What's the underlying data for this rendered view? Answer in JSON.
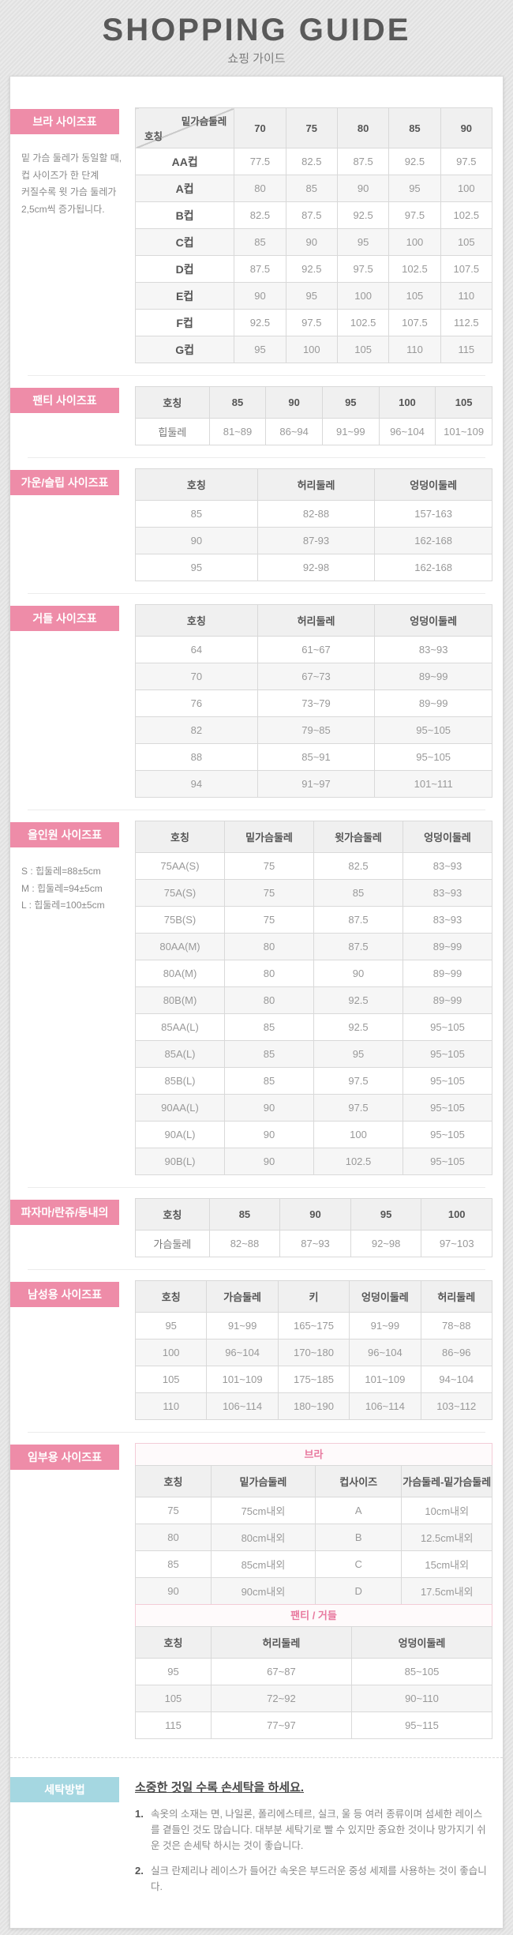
{
  "page": {
    "title": "SHOPPING GUIDE",
    "subtitle": "쇼핑 가이드"
  },
  "colors": {
    "label_pink": "#ee8ca8",
    "label_blue": "#a5d7e1",
    "band_pink_text": "#e8799f"
  },
  "sections": {
    "bra": {
      "label": "브라 사이즈표",
      "note_lines": [
        "밑 가슴 둘레가 동일할 때,",
        "컵 사이즈가 한 단계",
        "커질수록 윗 가슴 둘레가",
        "2,5cm씩 증가됩니다."
      ],
      "table": {
        "corner": {
          "top": "밑가슴둘레",
          "bottom": "호칭"
        },
        "header": [
          "70",
          "75",
          "80",
          "85",
          "90"
        ],
        "rows": [
          [
            "AA컵",
            "77.5",
            "82.5",
            "87.5",
            "92.5",
            "97.5"
          ],
          [
            "A컵",
            "80",
            "85",
            "90",
            "95",
            "100"
          ],
          [
            "B컵",
            "82.5",
            "87.5",
            "92.5",
            "97.5",
            "102.5"
          ],
          [
            "C컵",
            "85",
            "90",
            "95",
            "100",
            "105"
          ],
          [
            "D컵",
            "87.5",
            "92.5",
            "97.5",
            "102.5",
            "107.5"
          ],
          [
            "E컵",
            "90",
            "95",
            "100",
            "105",
            "110"
          ],
          [
            "F컵",
            "92.5",
            "97.5",
            "102.5",
            "107.5",
            "112.5"
          ],
          [
            "G컵",
            "95",
            "100",
            "105",
            "110",
            "115"
          ]
        ]
      }
    },
    "panty": {
      "label": "팬티 사이즈표",
      "table": {
        "header": [
          "호칭",
          "85",
          "90",
          "95",
          "100",
          "105"
        ],
        "rows": [
          [
            "힙둘레",
            "81~89",
            "86~94",
            "91~99",
            "96~104",
            "101~109"
          ]
        ]
      }
    },
    "gown": {
      "label": "가운/슬립 사이즈표",
      "table": {
        "header": [
          "호칭",
          "허리둘레",
          "엉덩이둘레"
        ],
        "rows": [
          [
            "85",
            "82-88",
            "157-163"
          ],
          [
            "90",
            "87-93",
            "162-168"
          ],
          [
            "95",
            "92-98",
            "162-168"
          ]
        ]
      }
    },
    "girdle": {
      "label": "거들 사이즈표",
      "table": {
        "header": [
          "호칭",
          "허리둘레",
          "엉덩이둘레"
        ],
        "rows": [
          [
            "64",
            "61~67",
            "83~93"
          ],
          [
            "70",
            "67~73",
            "89~99"
          ],
          [
            "76",
            "73~79",
            "89~99"
          ],
          [
            "82",
            "79~85",
            "95~105"
          ],
          [
            "88",
            "85~91",
            "95~105"
          ],
          [
            "94",
            "91~97",
            "101~111"
          ]
        ]
      }
    },
    "allinone": {
      "label": "올인원 사이즈표",
      "note_lines": [
        "S : 힙둘레=88±5cm",
        "M : 힙둘레=94±5cm",
        "L : 힙둘레=100±5cm"
      ],
      "table": {
        "header": [
          "호칭",
          "밑가슴둘레",
          "윗가슴둘레",
          "엉덩이둘레"
        ],
        "rows": [
          [
            "75AA(S)",
            "75",
            "82.5",
            "83~93"
          ],
          [
            "75A(S)",
            "75",
            "85",
            "83~93"
          ],
          [
            "75B(S)",
            "75",
            "87.5",
            "83~93"
          ],
          [
            "80AA(M)",
            "80",
            "87.5",
            "89~99"
          ],
          [
            "80A(M)",
            "80",
            "90",
            "89~99"
          ],
          [
            "80B(M)",
            "80",
            "92.5",
            "89~99"
          ],
          [
            "85AA(L)",
            "85",
            "92.5",
            "95~105"
          ],
          [
            "85A(L)",
            "85",
            "95",
            "95~105"
          ],
          [
            "85B(L)",
            "85",
            "97.5",
            "95~105"
          ],
          [
            "90AA(L)",
            "90",
            "97.5",
            "95~105"
          ],
          [
            "90A(L)",
            "90",
            "100",
            "95~105"
          ],
          [
            "90B(L)",
            "90",
            "102.5",
            "95~105"
          ]
        ]
      }
    },
    "pajama": {
      "label": "파자마/란쥬/동내의",
      "table": {
        "header": [
          "호칭",
          "85",
          "90",
          "95",
          "100"
        ],
        "rows": [
          [
            "가슴둘레",
            "82~88",
            "87~93",
            "92~98",
            "97~103"
          ]
        ]
      }
    },
    "mens": {
      "label": "남성용 사이즈표",
      "table": {
        "header": [
          "호칭",
          "가슴둘레",
          "키",
          "엉덩이둘레",
          "허리둘레"
        ],
        "rows": [
          [
            "95",
            "91~99",
            "165~175",
            "91~99",
            "78~88"
          ],
          [
            "100",
            "96~104",
            "170~180",
            "96~104",
            "86~96"
          ],
          [
            "105",
            "101~109",
            "175~185",
            "101~109",
            "94~104"
          ],
          [
            "110",
            "106~114",
            "180~190",
            "106~114",
            "103~112"
          ]
        ]
      }
    },
    "maternity": {
      "label": "임부용 사이즈표",
      "bra_band": "브라",
      "bra_table": {
        "header": [
          "호칭",
          "밑가슴둘레",
          "컵사이즈",
          "가슴둘레-밑가슴둘레"
        ],
        "rows": [
          [
            "75",
            "75cm내외",
            "A",
            "10cm내외"
          ],
          [
            "80",
            "80cm내외",
            "B",
            "12.5cm내외"
          ],
          [
            "85",
            "85cm내외",
            "C",
            "15cm내외"
          ],
          [
            "90",
            "90cm내외",
            "D",
            "17.5cm내외"
          ]
        ]
      },
      "pg_band": "팬티 / 거들",
      "pg_table": {
        "header": [
          "호칭",
          "허리둘레",
          "엉덩이둘레"
        ],
        "rows": [
          [
            "95",
            "67~87",
            "85~105"
          ],
          [
            "105",
            "72~92",
            "90~110"
          ],
          [
            "115",
            "77~97",
            "95~115"
          ]
        ]
      }
    },
    "washing": {
      "label": "세탁방법",
      "title": "소중한 것일 수록 손세탁을 하세요.",
      "items": [
        {
          "num": "1.",
          "text": "속옷의 소재는 면, 나일론, 폴리에스테르, 실크, 울 등 여러 종류이며 섬세한 레이스를 곁들인 것도 많습니다. 대부분 세탁기로 빨 수 있지만 중요한 것이나 망가지기 쉬운 것은 손세탁 하시는 것이 좋습니다."
        },
        {
          "num": "2.",
          "text": "실크 란제리나 레이스가 들어간 속옷은 부드러운 중성 세제를 사용하는 것이 좋습니다."
        }
      ]
    }
  }
}
